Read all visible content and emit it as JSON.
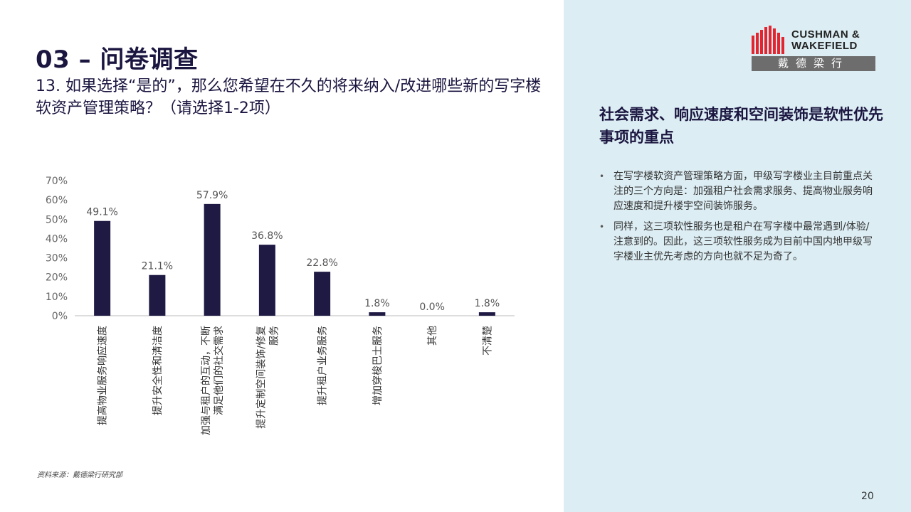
{
  "header": {
    "title": "03 – 问卷调查",
    "question": "13. 如果选择“是的”，那么您希望在不久的将来纳入/改进哪些新的写字楼软资产管理策略？（请选择1-2项）"
  },
  "chart_data": {
    "type": "bar",
    "title": "",
    "xlabel": "",
    "ylabel": "",
    "ylim": [
      0,
      70
    ],
    "y_ticks": [
      "0%",
      "10%",
      "20%",
      "30%",
      "40%",
      "50%",
      "60%",
      "70%"
    ],
    "categories": [
      "提高物业服务响应速度",
      "提升安全性和清洁度",
      "加强与租户的互动，不断满足他们的社交需求",
      "提升定制空间装饰/修复服务",
      "提升租户业务服务",
      "增加穿梭巴士服务",
      "其他",
      "不清楚"
    ],
    "values": [
      49.1,
      21.1,
      57.9,
      36.8,
      22.8,
      1.8,
      0.0,
      1.8
    ],
    "value_labels": [
      "49.1%",
      "21.1%",
      "57.9%",
      "36.8%",
      "22.8%",
      "1.8%",
      "0.0%",
      "1.8%"
    ],
    "bar_color": "#1e1a44",
    "grid": false,
    "legend": "none"
  },
  "source": "资料来源：戴德梁行研究部",
  "brand": {
    "name_line1": "CUSHMAN &",
    "name_line2": "WAKEFIELD",
    "chinese_name": "戴德梁行",
    "logo_red": "#e4252f",
    "logo_gray": "#6d6d6d"
  },
  "panel": {
    "heading": "社会需求、响应速度和空间装饰是软性优先事项的重点",
    "bullets": [
      "在写字楼软资产管理策略方面，甲级写字楼业主目前重点关注的三个方向是：加强租户社会需求服务、提高物业服务响应速度和提升楼宇空间装饰服务。",
      "同样，这三项软性服务也是租户在写字楼中最常遇到/体验/注意到的。因此，这三项软性服务成为目前中国内地甲级写字楼业主优先考虑的方向也就不足为奇了。"
    ],
    "bullet_char": "•",
    "background": "#dcedf3"
  },
  "page_number": "20"
}
